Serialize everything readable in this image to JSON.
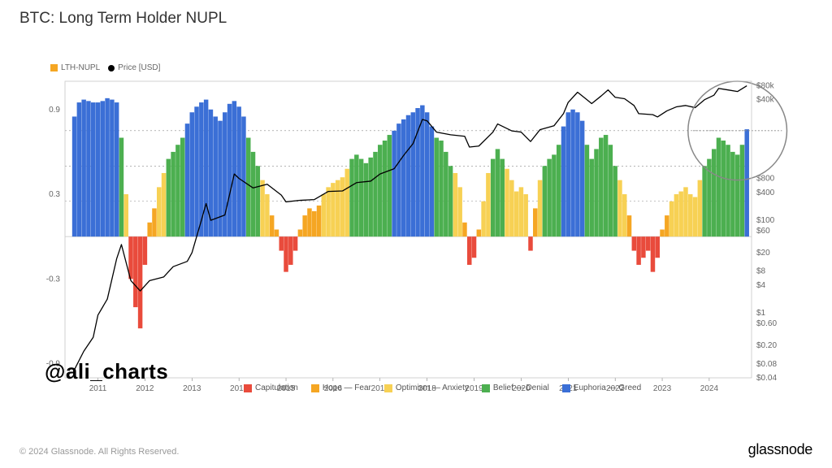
{
  "title": "BTC: Long Term Holder NUPL",
  "watermark": "@ali_charts",
  "footer_copy": "© 2024 Glassnode. All Rights Reserved.",
  "footer_brand": "glassnode",
  "top_legend": {
    "nupl_label": "LTH-NUPL",
    "nupl_color": "#f5a623",
    "price_label": "Price [USD]",
    "price_color": "#000000"
  },
  "bottom_legend": [
    {
      "label": "Capitulation",
      "color": "#e94b3c"
    },
    {
      "label": "Hope — Fear",
      "color": "#f5a623"
    },
    {
      "label": "Optimism — Anxiety",
      "color": "#f7d154"
    },
    {
      "label": "Belief — Denial",
      "color": "#4caf50"
    },
    {
      "label": "Euphoria — Greed",
      "color": "#3b6fd6"
    }
  ],
  "chart": {
    "type": "combined-bar-line",
    "background_color": "#ffffff",
    "plot_bg": "#ffffff",
    "plot_border_color": "#cccccc",
    "grid_color": "#e6e6e6",
    "dotted_color": "#888888",
    "axis_fontsize": 10,
    "axis_color": "#666666",
    "x": {
      "lim": [
        2010.3,
        2024.9
      ],
      "ticks": [
        2011,
        2012,
        2013,
        2014,
        2015,
        2016,
        2017,
        2018,
        2019,
        2020,
        2021,
        2022,
        2023,
        2024
      ]
    },
    "y_left": {
      "lim": [
        -1.0,
        1.1
      ],
      "ticks": [
        -0.9,
        -0.3,
        0.3,
        0.9
      ],
      "labels": [
        "-0.9",
        "-0.3",
        "0.3",
        "0.9"
      ],
      "thresholds": [
        0,
        0.25,
        0.5,
        0.75
      ]
    },
    "y_right": {
      "scale": "log",
      "ticks": [
        0.04,
        0.08,
        0.2,
        0.6,
        1,
        4,
        8,
        20,
        60,
        100,
        400,
        800,
        40000,
        80000
      ],
      "labels": [
        "$0.04",
        "$0.08",
        "$0.20",
        "$0.60",
        "$1",
        "$4",
        "$8",
        "$20",
        "$60",
        "$100",
        "$400",
        "$800",
        "$40k",
        "$80k"
      ]
    },
    "highlight_circle": {
      "x": 2024.6,
      "nupl": 0.75,
      "radius": 0.35,
      "stroke": "#888888"
    },
    "nupl_bars": [
      {
        "t": 2010.5,
        "v": 0.85
      },
      {
        "t": 2010.6,
        "v": 0.95
      },
      {
        "t": 2010.7,
        "v": 0.97
      },
      {
        "t": 2010.8,
        "v": 0.96
      },
      {
        "t": 2010.9,
        "v": 0.95
      },
      {
        "t": 2011.0,
        "v": 0.95
      },
      {
        "t": 2011.1,
        "v": 0.96
      },
      {
        "t": 2011.2,
        "v": 0.98
      },
      {
        "t": 2011.3,
        "v": 0.97
      },
      {
        "t": 2011.4,
        "v": 0.95
      },
      {
        "t": 2011.5,
        "v": 0.7
      },
      {
        "t": 2011.6,
        "v": 0.3
      },
      {
        "t": 2011.7,
        "v": -0.3
      },
      {
        "t": 2011.8,
        "v": -0.5
      },
      {
        "t": 2011.9,
        "v": -0.65
      },
      {
        "t": 2012.0,
        "v": -0.2
      },
      {
        "t": 2012.1,
        "v": 0.1
      },
      {
        "t": 2012.2,
        "v": 0.2
      },
      {
        "t": 2012.3,
        "v": 0.35
      },
      {
        "t": 2012.4,
        "v": 0.45
      },
      {
        "t": 2012.5,
        "v": 0.55
      },
      {
        "t": 2012.6,
        "v": 0.6
      },
      {
        "t": 2012.7,
        "v": 0.65
      },
      {
        "t": 2012.8,
        "v": 0.7
      },
      {
        "t": 2012.9,
        "v": 0.8
      },
      {
        "t": 2013.0,
        "v": 0.88
      },
      {
        "t": 2013.1,
        "v": 0.92
      },
      {
        "t": 2013.2,
        "v": 0.95
      },
      {
        "t": 2013.3,
        "v": 0.97
      },
      {
        "t": 2013.4,
        "v": 0.9
      },
      {
        "t": 2013.5,
        "v": 0.85
      },
      {
        "t": 2013.6,
        "v": 0.82
      },
      {
        "t": 2013.7,
        "v": 0.88
      },
      {
        "t": 2013.8,
        "v": 0.94
      },
      {
        "t": 2013.9,
        "v": 0.96
      },
      {
        "t": 2014.0,
        "v": 0.92
      },
      {
        "t": 2014.1,
        "v": 0.85
      },
      {
        "t": 2014.2,
        "v": 0.7
      },
      {
        "t": 2014.3,
        "v": 0.6
      },
      {
        "t": 2014.4,
        "v": 0.5
      },
      {
        "t": 2014.5,
        "v": 0.4
      },
      {
        "t": 2014.6,
        "v": 0.3
      },
      {
        "t": 2014.7,
        "v": 0.15
      },
      {
        "t": 2014.8,
        "v": 0.05
      },
      {
        "t": 2014.9,
        "v": -0.1
      },
      {
        "t": 2015.0,
        "v": -0.25
      },
      {
        "t": 2015.1,
        "v": -0.2
      },
      {
        "t": 2015.2,
        "v": -0.1
      },
      {
        "t": 2015.3,
        "v": 0.05
      },
      {
        "t": 2015.4,
        "v": 0.15
      },
      {
        "t": 2015.5,
        "v": 0.2
      },
      {
        "t": 2015.6,
        "v": 0.18
      },
      {
        "t": 2015.7,
        "v": 0.22
      },
      {
        "t": 2015.8,
        "v": 0.3
      },
      {
        "t": 2015.9,
        "v": 0.35
      },
      {
        "t": 2016.0,
        "v": 0.38
      },
      {
        "t": 2016.1,
        "v": 0.4
      },
      {
        "t": 2016.2,
        "v": 0.42
      },
      {
        "t": 2016.3,
        "v": 0.48
      },
      {
        "t": 2016.4,
        "v": 0.55
      },
      {
        "t": 2016.5,
        "v": 0.58
      },
      {
        "t": 2016.6,
        "v": 0.55
      },
      {
        "t": 2016.7,
        "v": 0.52
      },
      {
        "t": 2016.8,
        "v": 0.56
      },
      {
        "t": 2016.9,
        "v": 0.6
      },
      {
        "t": 2017.0,
        "v": 0.65
      },
      {
        "t": 2017.1,
        "v": 0.68
      },
      {
        "t": 2017.2,
        "v": 0.72
      },
      {
        "t": 2017.3,
        "v": 0.75
      },
      {
        "t": 2017.4,
        "v": 0.8
      },
      {
        "t": 2017.5,
        "v": 0.83
      },
      {
        "t": 2017.6,
        "v": 0.86
      },
      {
        "t": 2017.7,
        "v": 0.88
      },
      {
        "t": 2017.8,
        "v": 0.91
      },
      {
        "t": 2017.9,
        "v": 0.93
      },
      {
        "t": 2018.0,
        "v": 0.88
      },
      {
        "t": 2018.1,
        "v": 0.78
      },
      {
        "t": 2018.2,
        "v": 0.7
      },
      {
        "t": 2018.3,
        "v": 0.68
      },
      {
        "t": 2018.4,
        "v": 0.6
      },
      {
        "t": 2018.5,
        "v": 0.5
      },
      {
        "t": 2018.6,
        "v": 0.45
      },
      {
        "t": 2018.7,
        "v": 0.35
      },
      {
        "t": 2018.8,
        "v": 0.1
      },
      {
        "t": 2018.9,
        "v": -0.2
      },
      {
        "t": 2019.0,
        "v": -0.15
      },
      {
        "t": 2019.1,
        "v": 0.05
      },
      {
        "t": 2019.2,
        "v": 0.25
      },
      {
        "t": 2019.3,
        "v": 0.45
      },
      {
        "t": 2019.4,
        "v": 0.55
      },
      {
        "t": 2019.5,
        "v": 0.62
      },
      {
        "t": 2019.6,
        "v": 0.55
      },
      {
        "t": 2019.7,
        "v": 0.48
      },
      {
        "t": 2019.8,
        "v": 0.4
      },
      {
        "t": 2019.9,
        "v": 0.32
      },
      {
        "t": 2020.0,
        "v": 0.35
      },
      {
        "t": 2020.1,
        "v": 0.3
      },
      {
        "t": 2020.2,
        "v": -0.1
      },
      {
        "t": 2020.3,
        "v": 0.2
      },
      {
        "t": 2020.4,
        "v": 0.4
      },
      {
        "t": 2020.5,
        "v": 0.5
      },
      {
        "t": 2020.6,
        "v": 0.55
      },
      {
        "t": 2020.7,
        "v": 0.58
      },
      {
        "t": 2020.8,
        "v": 0.65
      },
      {
        "t": 2020.9,
        "v": 0.78
      },
      {
        "t": 2021.0,
        "v": 0.88
      },
      {
        "t": 2021.1,
        "v": 0.9
      },
      {
        "t": 2021.2,
        "v": 0.88
      },
      {
        "t": 2021.3,
        "v": 0.82
      },
      {
        "t": 2021.4,
        "v": 0.65
      },
      {
        "t": 2021.5,
        "v": 0.55
      },
      {
        "t": 2021.6,
        "v": 0.62
      },
      {
        "t": 2021.7,
        "v": 0.7
      },
      {
        "t": 2021.8,
        "v": 0.72
      },
      {
        "t": 2021.9,
        "v": 0.65
      },
      {
        "t": 2022.0,
        "v": 0.5
      },
      {
        "t": 2022.1,
        "v": 0.4
      },
      {
        "t": 2022.2,
        "v": 0.3
      },
      {
        "t": 2022.3,
        "v": 0.15
      },
      {
        "t": 2022.4,
        "v": -0.1
      },
      {
        "t": 2022.5,
        "v": -0.2
      },
      {
        "t": 2022.6,
        "v": -0.15
      },
      {
        "t": 2022.7,
        "v": -0.1
      },
      {
        "t": 2022.8,
        "v": -0.25
      },
      {
        "t": 2022.9,
        "v": -0.15
      },
      {
        "t": 2023.0,
        "v": 0.05
      },
      {
        "t": 2023.1,
        "v": 0.15
      },
      {
        "t": 2023.2,
        "v": 0.25
      },
      {
        "t": 2023.3,
        "v": 0.3
      },
      {
        "t": 2023.4,
        "v": 0.32
      },
      {
        "t": 2023.5,
        "v": 0.35
      },
      {
        "t": 2023.6,
        "v": 0.3
      },
      {
        "t": 2023.7,
        "v": 0.28
      },
      {
        "t": 2023.8,
        "v": 0.4
      },
      {
        "t": 2023.9,
        "v": 0.5
      },
      {
        "t": 2024.0,
        "v": 0.55
      },
      {
        "t": 2024.1,
        "v": 0.62
      },
      {
        "t": 2024.2,
        "v": 0.7
      },
      {
        "t": 2024.3,
        "v": 0.68
      },
      {
        "t": 2024.4,
        "v": 0.65
      },
      {
        "t": 2024.5,
        "v": 0.6
      },
      {
        "t": 2024.6,
        "v": 0.58
      },
      {
        "t": 2024.7,
        "v": 0.65
      },
      {
        "t": 2024.8,
        "v": 0.76
      }
    ],
    "price_points": [
      {
        "t": 2010.5,
        "p": 0.06
      },
      {
        "t": 2010.7,
        "p": 0.15
      },
      {
        "t": 2010.9,
        "p": 0.3
      },
      {
        "t": 2011.0,
        "p": 0.9
      },
      {
        "t": 2011.2,
        "p": 2
      },
      {
        "t": 2011.4,
        "p": 15
      },
      {
        "t": 2011.5,
        "p": 30
      },
      {
        "t": 2011.7,
        "p": 5
      },
      {
        "t": 2011.9,
        "p": 3
      },
      {
        "t": 2012.1,
        "p": 5
      },
      {
        "t": 2012.4,
        "p": 6
      },
      {
        "t": 2012.6,
        "p": 10
      },
      {
        "t": 2012.9,
        "p": 13
      },
      {
        "t": 2013.0,
        "p": 20
      },
      {
        "t": 2013.2,
        "p": 100
      },
      {
        "t": 2013.3,
        "p": 230
      },
      {
        "t": 2013.4,
        "p": 100
      },
      {
        "t": 2013.7,
        "p": 130
      },
      {
        "t": 2013.9,
        "p": 1000
      },
      {
        "t": 2014.0,
        "p": 800
      },
      {
        "t": 2014.3,
        "p": 500
      },
      {
        "t": 2014.6,
        "p": 600
      },
      {
        "t": 2014.9,
        "p": 350
      },
      {
        "t": 2015.0,
        "p": 250
      },
      {
        "t": 2015.3,
        "p": 270
      },
      {
        "t": 2015.6,
        "p": 280
      },
      {
        "t": 2015.9,
        "p": 420
      },
      {
        "t": 2016.2,
        "p": 430
      },
      {
        "t": 2016.5,
        "p": 650
      },
      {
        "t": 2016.8,
        "p": 700
      },
      {
        "t": 2017.0,
        "p": 1000
      },
      {
        "t": 2017.3,
        "p": 1300
      },
      {
        "t": 2017.5,
        "p": 2500
      },
      {
        "t": 2017.7,
        "p": 4500
      },
      {
        "t": 2017.9,
        "p": 15000
      },
      {
        "t": 2018.0,
        "p": 14000
      },
      {
        "t": 2018.2,
        "p": 8000
      },
      {
        "t": 2018.5,
        "p": 7000
      },
      {
        "t": 2018.8,
        "p": 6500
      },
      {
        "t": 2018.9,
        "p": 3800
      },
      {
        "t": 2019.1,
        "p": 4000
      },
      {
        "t": 2019.4,
        "p": 8000
      },
      {
        "t": 2019.5,
        "p": 12000
      },
      {
        "t": 2019.8,
        "p": 8500
      },
      {
        "t": 2020.0,
        "p": 8000
      },
      {
        "t": 2020.2,
        "p": 5000
      },
      {
        "t": 2020.4,
        "p": 9000
      },
      {
        "t": 2020.7,
        "p": 11000
      },
      {
        "t": 2020.9,
        "p": 20000
      },
      {
        "t": 2021.0,
        "p": 35000
      },
      {
        "t": 2021.2,
        "p": 58000
      },
      {
        "t": 2021.4,
        "p": 40000
      },
      {
        "t": 2021.5,
        "p": 33000
      },
      {
        "t": 2021.7,
        "p": 48000
      },
      {
        "t": 2021.85,
        "p": 65000
      },
      {
        "t": 2022.0,
        "p": 45000
      },
      {
        "t": 2022.2,
        "p": 42000
      },
      {
        "t": 2022.4,
        "p": 30000
      },
      {
        "t": 2022.5,
        "p": 20000
      },
      {
        "t": 2022.8,
        "p": 19000
      },
      {
        "t": 2022.9,
        "p": 17000
      },
      {
        "t": 2023.1,
        "p": 23000
      },
      {
        "t": 2023.3,
        "p": 28000
      },
      {
        "t": 2023.5,
        "p": 30000
      },
      {
        "t": 2023.7,
        "p": 27000
      },
      {
        "t": 2023.9,
        "p": 40000
      },
      {
        "t": 2024.1,
        "p": 50000
      },
      {
        "t": 2024.2,
        "p": 70000
      },
      {
        "t": 2024.4,
        "p": 65000
      },
      {
        "t": 2024.6,
        "p": 60000
      },
      {
        "t": 2024.8,
        "p": 80000
      }
    ],
    "bar_colors": {
      "capitulation": "#e94b3c",
      "hope_fear": "#f5a623",
      "optimism_anxiety": "#f7d154",
      "belief_denial": "#4caf50",
      "euphoria_greed": "#3b6fd6"
    },
    "bar_width": 0.095,
    "line_color": "#000000",
    "line_width": 1.3
  }
}
